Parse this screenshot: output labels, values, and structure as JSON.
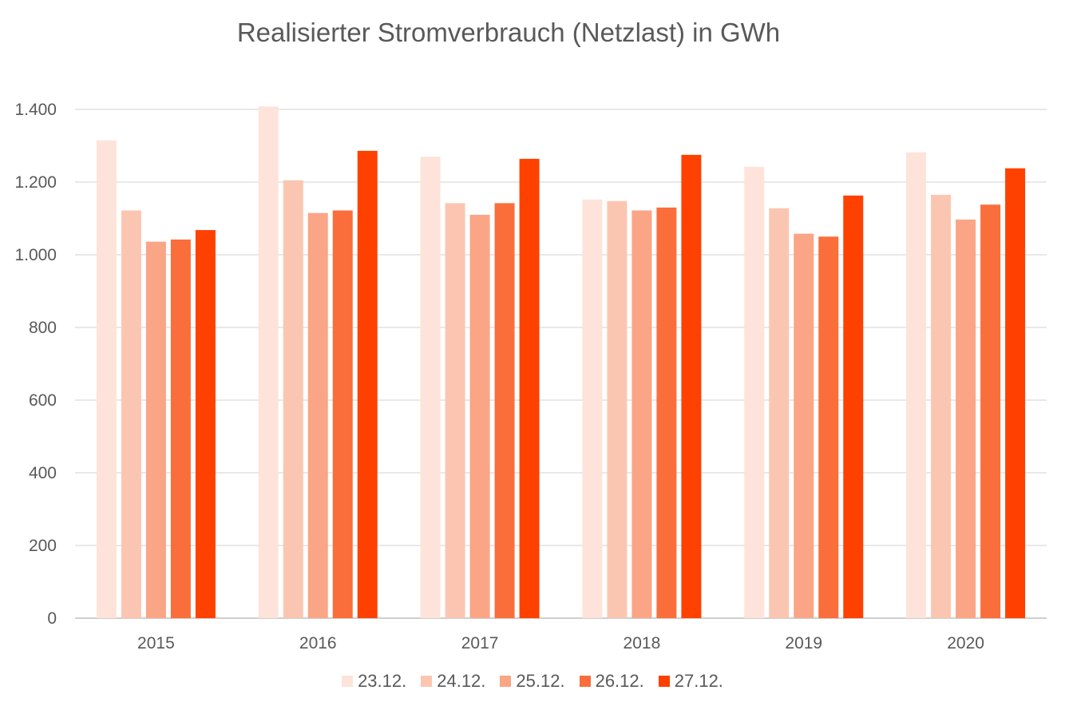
{
  "chart_data": {
    "type": "bar",
    "title": "Realisierter Stromverbrauch (Netzlast) in GWh",
    "xlabel": "",
    "ylabel": "",
    "categories": [
      "2015",
      "2016",
      "2017",
      "2018",
      "2019",
      "2020"
    ],
    "ylim": [
      0,
      1400
    ],
    "yticks": [
      0,
      200,
      400,
      600,
      800,
      1000,
      1200,
      1400
    ],
    "ytick_labels": [
      "0",
      "200",
      "400",
      "600",
      "800",
      "1.000",
      "1.200",
      "1.400"
    ],
    "grid": true,
    "legend_position": "bottom",
    "series": [
      {
        "name": "23.12.",
        "color": "#FDE3D9",
        "values": [
          1315,
          1408,
          1270,
          1152,
          1242,
          1282
        ]
      },
      {
        "name": "24.12.",
        "color": "#FBC6B1",
        "values": [
          1122,
          1205,
          1142,
          1148,
          1128,
          1165
        ]
      },
      {
        "name": "25.12.",
        "color": "#F9A586",
        "values": [
          1036,
          1115,
          1110,
          1122,
          1058,
          1097
        ]
      },
      {
        "name": "26.12.",
        "color": "#FA6E3C",
        "values": [
          1042,
          1122,
          1142,
          1130,
          1050,
          1138
        ]
      },
      {
        "name": "27.12.",
        "color": "#FF4100",
        "values": [
          1068,
          1286,
          1264,
          1275,
          1163,
          1238
        ]
      }
    ]
  }
}
